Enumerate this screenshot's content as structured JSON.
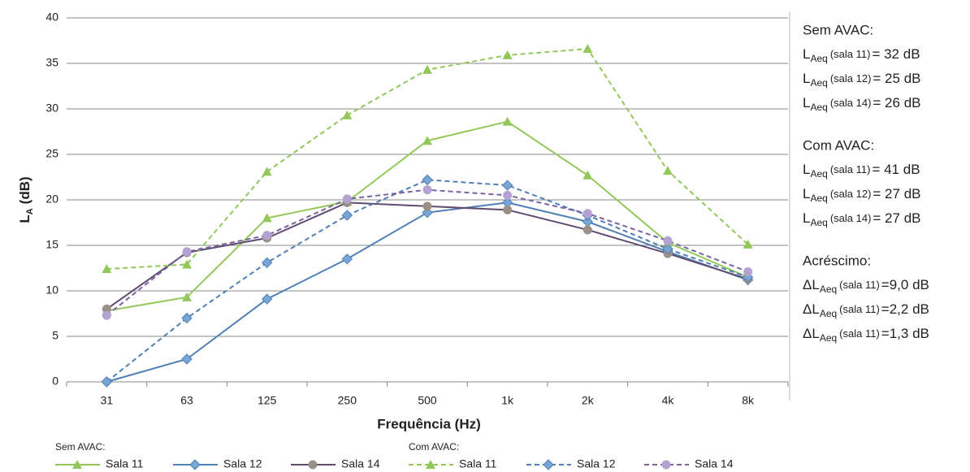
{
  "chart_data": {
    "type": "line",
    "x_label": "Frequência (Hz)",
    "y_label": {
      "symbol": "L",
      "sub": "A",
      "unit": "(dB)"
    },
    "categories": [
      "31",
      "63",
      "125",
      "250",
      "500",
      "1k",
      "2k",
      "4k",
      "8k"
    ],
    "ylim": [
      0,
      40
    ],
    "yticks": [
      0,
      5,
      10,
      15,
      20,
      25,
      30,
      35,
      40
    ],
    "grid": true,
    "legend_groups": [
      {
        "title": "Sem AVAC:",
        "line_style": "solid"
      },
      {
        "title": "Com AVAC:",
        "line_style": "dashed"
      }
    ],
    "series": [
      {
        "name": "Sala 11",
        "color": "#92c85a",
        "marker_color": "#92c85a",
        "marker": "triangle",
        "line_style": "solid",
        "values": [
          7.8,
          9.3,
          18,
          19.8,
          26.5,
          28.6,
          22.7,
          15.3,
          11.5
        ]
      },
      {
        "name": "Sala 12",
        "color": "#4f7fb5",
        "marker_color": "#7aa6d6",
        "marker": "diamond",
        "line_style": "solid",
        "values": [
          0,
          2.5,
          9.1,
          13.5,
          18.6,
          19.7,
          17.6,
          14.3,
          11.2
        ]
      },
      {
        "name": "Sala 14",
        "color": "#5f4b72",
        "marker_color": "#9a9088",
        "marker": "circle",
        "line_style": "solid",
        "values": [
          8,
          14.2,
          15.8,
          19.7,
          19.3,
          18.9,
          16.7,
          14.1,
          11.3
        ]
      },
      {
        "name": "Sala 11",
        "color": "#92c85a",
        "marker_color": "#92c85a",
        "marker": "triangle",
        "line_style": "dashed",
        "values": [
          12.4,
          12.9,
          23.1,
          29.3,
          34.3,
          35.9,
          36.6,
          23.2,
          15.1
        ]
      },
      {
        "name": "Sala 12",
        "color": "#4f7fb5",
        "marker_color": "#7aa6d6",
        "marker": "diamond",
        "line_style": "dashed",
        "values": [
          0,
          7,
          13.1,
          18.3,
          22.2,
          21.6,
          18.3,
          14.6,
          11.5
        ]
      },
      {
        "name": "Sala 14",
        "color": "#7a63a0",
        "marker_color": "#b4a2d2",
        "marker": "circle",
        "line_style": "dashed",
        "values": [
          7.3,
          14.3,
          16.1,
          20.1,
          21.1,
          20.5,
          18.5,
          15.5,
          12.1
        ]
      }
    ],
    "annotations": [
      {
        "title": "Sem AVAC:",
        "lines": [
          {
            "symbol": "L",
            "sub": "Aeq",
            "label": "(sala 11)",
            "value": "= 32 dB"
          },
          {
            "symbol": "L",
            "sub": "Aeq",
            "label": "(sala 12)",
            "value": "= 25 dB"
          },
          {
            "symbol": "L",
            "sub": "Aeq",
            "label": "(sala 14)",
            "value": "= 26 dB"
          }
        ]
      },
      {
        "title": "Com AVAC:",
        "lines": [
          {
            "symbol": "L",
            "sub": "Aeq",
            "label": "(sala 11)",
            "value": "= 41 dB"
          },
          {
            "symbol": "L",
            "sub": "Aeq",
            "label": "(sala 12)",
            "value": "= 27 dB"
          },
          {
            "symbol": "L",
            "sub": "Aeq",
            "label": "(sala 14)",
            "value": "= 27 dB"
          }
        ]
      },
      {
        "title": "Acréscimo:",
        "lines": [
          {
            "symbol": "ΔL",
            "sub": "Aeq",
            "label": "(sala 11)",
            "value": "=9,0 dB"
          },
          {
            "symbol": "ΔL",
            "sub": "Aeq",
            "label": "(sala 11)",
            "value": "=2,2 dB"
          },
          {
            "symbol": "ΔL",
            "sub": "Aeq",
            "label": "(sala 11)",
            "value": "=1,3 dB"
          }
        ]
      }
    ]
  }
}
